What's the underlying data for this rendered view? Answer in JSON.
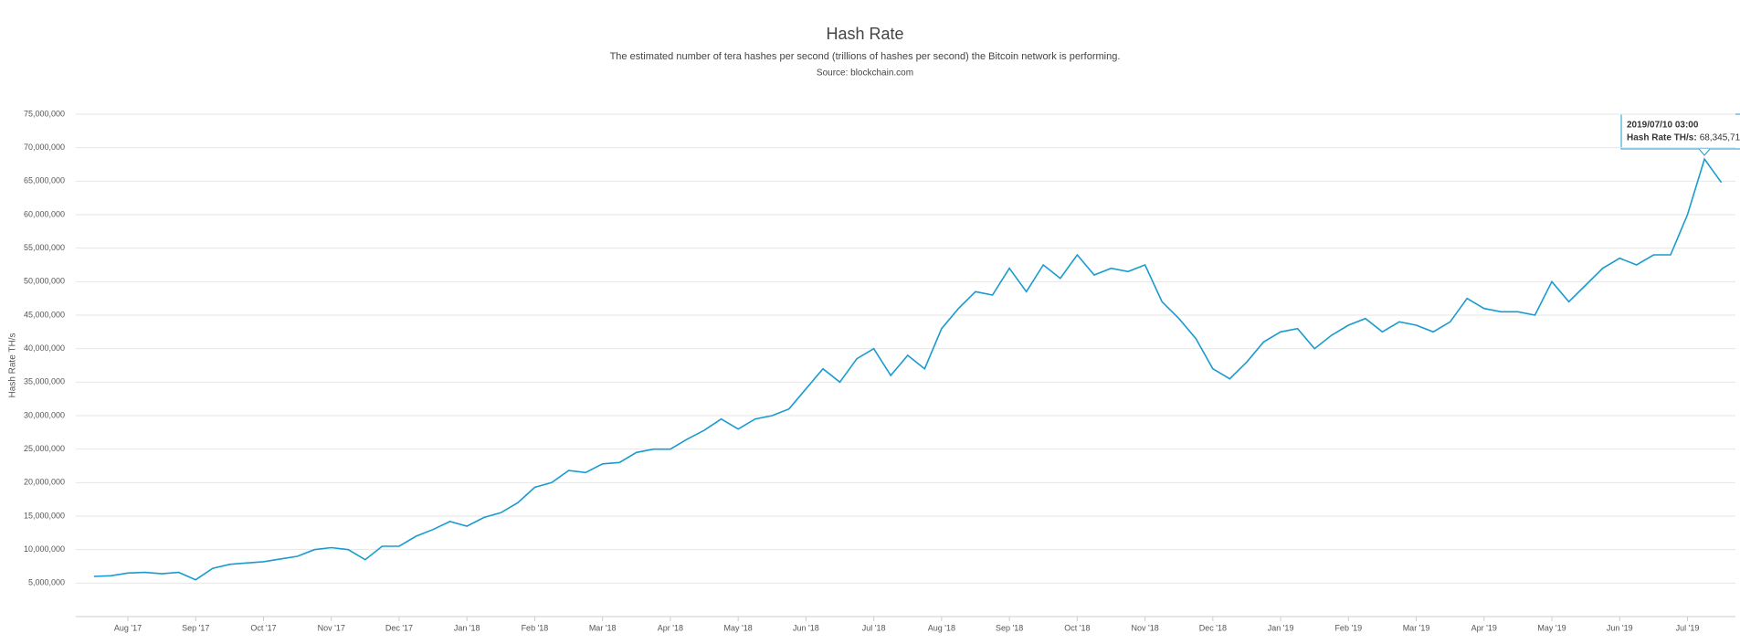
{
  "chart_data": {
    "type": "line",
    "title": "Hash Rate",
    "subtitle": "The estimated number of tera hashes per second (trillions of hashes per second) the Bitcoin network is performing.",
    "source": "Source: blockchain.com",
    "y_label": "Hash Rate TH/s",
    "color": "#1a9bd0",
    "grid": true,
    "ylim": [
      0,
      75000000
    ],
    "yticks": [
      {
        "value": 5000000,
        "label": "5,000,000"
      },
      {
        "value": 10000000,
        "label": "10,000,000"
      },
      {
        "value": 15000000,
        "label": "15,000,000"
      },
      {
        "value": 20000000,
        "label": "20,000,000"
      },
      {
        "value": 25000000,
        "label": "25,000,000"
      },
      {
        "value": 30000000,
        "label": "30,000,000"
      },
      {
        "value": 35000000,
        "label": "35,000,000"
      },
      {
        "value": 40000000,
        "label": "40,000,000"
      },
      {
        "value": 45000000,
        "label": "45,000,000"
      },
      {
        "value": 50000000,
        "label": "50,000,000"
      },
      {
        "value": 55000000,
        "label": "55,000,000"
      },
      {
        "value": 60000000,
        "label": "60,000,000"
      },
      {
        "value": 65000000,
        "label": "65,000,000"
      },
      {
        "value": 70000000,
        "label": "70,000,000"
      },
      {
        "value": 75000000,
        "label": "75,000,000"
      }
    ],
    "categories": [
      null,
      null,
      "Aug '17",
      null,
      null,
      null,
      "Sep '17",
      null,
      null,
      null,
      "Oct '17",
      null,
      null,
      null,
      "Nov '17",
      null,
      null,
      null,
      "Dec '17",
      null,
      null,
      null,
      "Jan '18",
      null,
      null,
      null,
      "Feb '18",
      null,
      null,
      null,
      "Mar '18",
      null,
      null,
      null,
      "Apr '18",
      null,
      null,
      null,
      "May '18",
      null,
      null,
      null,
      "Jun '18",
      null,
      null,
      null,
      "Jul '18",
      null,
      null,
      null,
      "Aug '18",
      null,
      null,
      null,
      "Sep '18",
      null,
      null,
      null,
      "Oct '18",
      null,
      null,
      null,
      "Nov '18",
      null,
      null,
      null,
      "Dec '18",
      null,
      null,
      null,
      "Jan '19",
      null,
      null,
      null,
      "Feb '19",
      null,
      null,
      null,
      "Mar '19",
      null,
      null,
      null,
      "Apr '19",
      null,
      null,
      null,
      "May '19",
      null,
      null,
      null,
      "Jun '19",
      null,
      null,
      null,
      "Jul '19",
      null,
      null
    ],
    "values": [
      6000000,
      6100000,
      6500000,
      6600000,
      6400000,
      6600000,
      5500000,
      7200000,
      7800000,
      8000000,
      8200000,
      8600000,
      9000000,
      10000000,
      10300000,
      10000000,
      8500000,
      10500000,
      10500000,
      12000000,
      13000000,
      14200000,
      13500000,
      14800000,
      15500000,
      17000000,
      19300000,
      20000000,
      21800000,
      21500000,
      22800000,
      23000000,
      24500000,
      25000000,
      25000000,
      26500000,
      27800000,
      29500000,
      28000000,
      29500000,
      30000000,
      31000000,
      34000000,
      37000000,
      35000000,
      38500000,
      40000000,
      36000000,
      39000000,
      37000000,
      43000000,
      46000000,
      48500000,
      48000000,
      52000000,
      48500000,
      52500000,
      50500000,
      54000000,
      51000000,
      52000000,
      51500000,
      52500000,
      47000000,
      44500000,
      41500000,
      37000000,
      35500000,
      38000000,
      41000000,
      42500000,
      43000000,
      40000000,
      42000000,
      43500000,
      44500000,
      42500000,
      44000000,
      43500000,
      42500000,
      44000000,
      47500000,
      46000000,
      45500000,
      45500000,
      45000000,
      50000000,
      47000000,
      49500000,
      52000000,
      53500000,
      52500000,
      54000000,
      54000000,
      60000000,
      68300000,
      64800000
    ],
    "tooltip": {
      "title": "2019/07/10 03:00",
      "label": "Hash Rate TH/s:",
      "value": "68,345,71"
    }
  }
}
